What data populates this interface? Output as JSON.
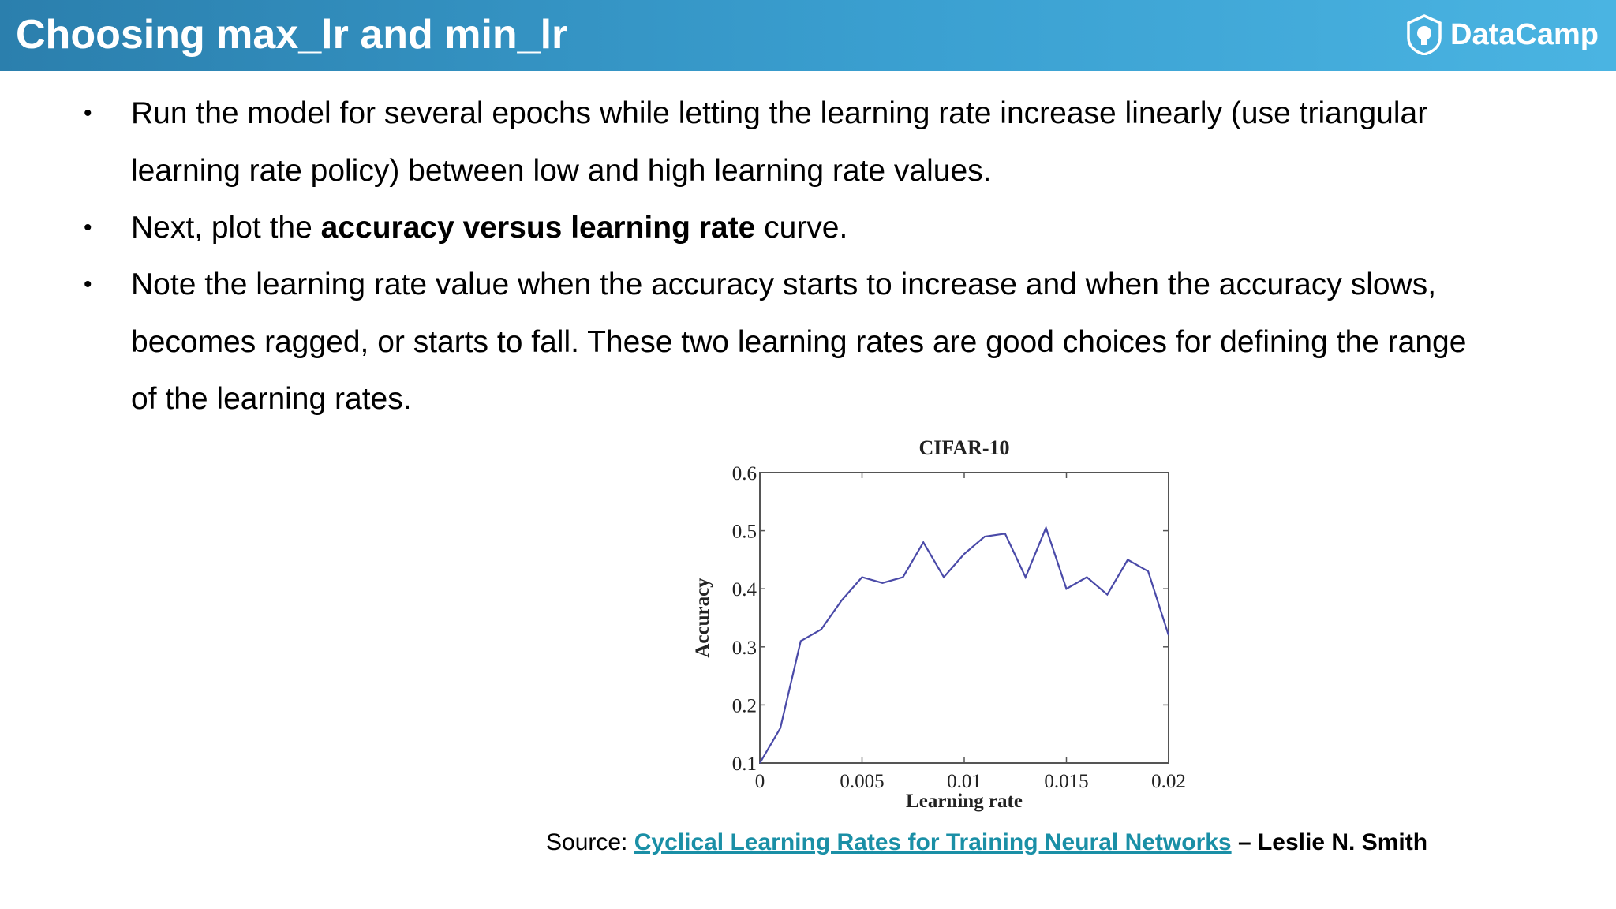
{
  "header": {
    "title": "Choosing max_lr and min_lr",
    "brand": "DataCamp"
  },
  "bullets": [
    {
      "text": "Run the model for several epochs while letting the learning rate increase linearly (use triangular learning rate policy)  between low and high learning rate values."
    },
    {
      "prefix": "Next, plot the ",
      "bold": "accuracy versus learning rate",
      "suffix": " curve."
    },
    {
      "text": "Note the learning rate value when the accuracy starts to increase and when the accuracy slows, becomes ragged, or starts to fall. These two learning rates are good choices for defining the range of the learning rates."
    }
  ],
  "chart_data": {
    "type": "line",
    "title": "CIFAR-10",
    "xlabel": "Learning rate",
    "ylabel": "Accuracy",
    "xlim": [
      0,
      0.02
    ],
    "ylim": [
      0.1,
      0.6
    ],
    "xticks": [
      "0",
      "0.005",
      "0.01",
      "0.015",
      "0.02"
    ],
    "xtick_values": [
      0,
      0.005,
      0.01,
      0.015,
      0.02
    ],
    "yticks": [
      "0.1",
      "0.2",
      "0.3",
      "0.4",
      "0.5",
      "0.6"
    ],
    "ytick_values": [
      0.1,
      0.2,
      0.3,
      0.4,
      0.5,
      0.6
    ],
    "grid": false,
    "series_color": "#4a4aa8",
    "x": [
      0,
      0.001,
      0.002,
      0.003,
      0.004,
      0.005,
      0.006,
      0.007,
      0.008,
      0.009,
      0.01,
      0.011,
      0.012,
      0.013,
      0.014,
      0.015,
      0.016,
      0.017,
      0.018,
      0.019,
      0.02
    ],
    "y": [
      0.1,
      0.16,
      0.31,
      0.33,
      0.38,
      0.42,
      0.41,
      0.42,
      0.48,
      0.42,
      0.46,
      0.49,
      0.495,
      0.42,
      0.505,
      0.4,
      0.42,
      0.39,
      0.45,
      0.43,
      0.32
    ]
  },
  "source": {
    "label": "Source: ",
    "link_text": "Cyclical Learning Rates for Training Neural Networks",
    "author": " – Leslie N. Smith"
  }
}
